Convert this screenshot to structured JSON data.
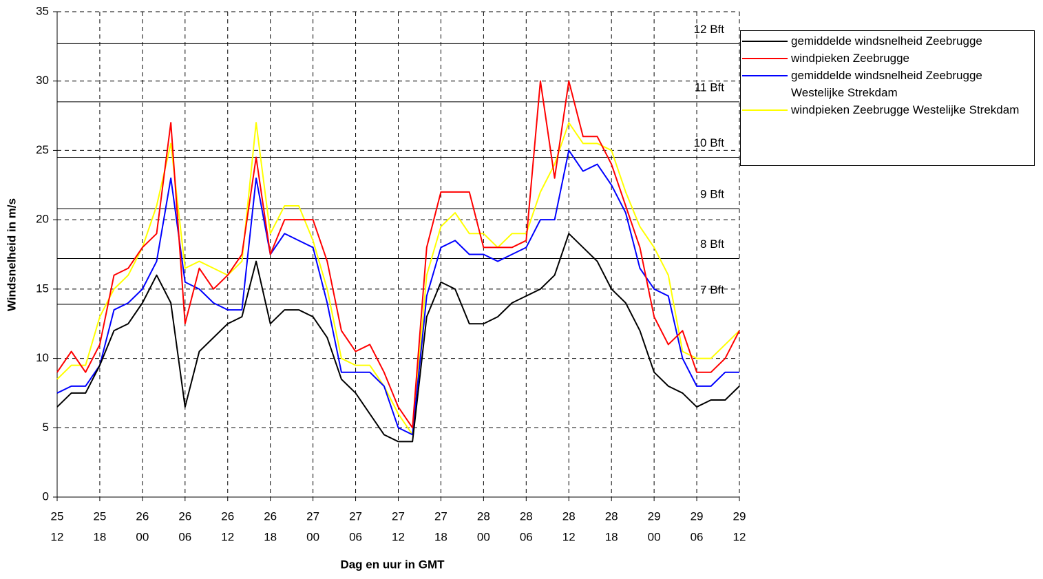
{
  "chart_data": {
    "type": "line",
    "y_label": "Windsnelheid in m/s",
    "x_label": "Dag en uur in GMT",
    "xlim": [
      0,
      96
    ],
    "xticks": [
      {
        "value": 0,
        "label": [
          "25",
          "12"
        ]
      },
      {
        "value": 6,
        "label": [
          "25",
          "18"
        ]
      },
      {
        "value": 12,
        "label": [
          "26",
          "00"
        ]
      },
      {
        "value": 18,
        "label": [
          "26",
          "06"
        ]
      },
      {
        "value": 24,
        "label": [
          "26",
          "12"
        ]
      },
      {
        "value": 30,
        "label": [
          "26",
          "18"
        ]
      },
      {
        "value": 36,
        "label": [
          "27",
          "00"
        ]
      },
      {
        "value": 42,
        "label": [
          "27",
          "06"
        ]
      },
      {
        "value": 48,
        "label": [
          "27",
          "12"
        ]
      },
      {
        "value": 54,
        "label": [
          "27",
          "18"
        ]
      },
      {
        "value": 60,
        "label": [
          "28",
          "00"
        ]
      },
      {
        "value": 66,
        "label": [
          "28",
          "06"
        ]
      },
      {
        "value": 72,
        "label": [
          "28",
          "12"
        ]
      },
      {
        "value": 78,
        "label": [
          "28",
          "18"
        ]
      },
      {
        "value": 84,
        "label": [
          "29",
          "00"
        ]
      },
      {
        "value": 90,
        "label": [
          "29",
          "06"
        ]
      },
      {
        "value": 96,
        "label": [
          "29",
          "12"
        ]
      }
    ],
    "ylim": [
      0,
      35
    ],
    "yticks": [
      0,
      5,
      10,
      15,
      20,
      25,
      30,
      35
    ],
    "grid": true,
    "legend": "right",
    "reference_lines": [
      {
        "value": 13.9,
        "label": "7 Bft"
      },
      {
        "value": 17.2,
        "label": "8 Bft"
      },
      {
        "value": 20.8,
        "label": "9 Bft"
      },
      {
        "value": 24.5,
        "label": "10 Bft"
      },
      {
        "value": 28.5,
        "label": "11 Bft"
      },
      {
        "value": 32.7,
        "label": "12 Bft"
      }
    ],
    "x": [
      0,
      2,
      4,
      6,
      8,
      10,
      12,
      14,
      16,
      18,
      20,
      22,
      24,
      26,
      28,
      30,
      32,
      34,
      36,
      38,
      40,
      42,
      44,
      46,
      48,
      50,
      52,
      54,
      56,
      58,
      60,
      62,
      64,
      66,
      68,
      70,
      72,
      74,
      76,
      78,
      80,
      82,
      84,
      86,
      88,
      90,
      92,
      94,
      96
    ],
    "series": [
      {
        "name": "gemiddelde windsnelheid Zeebrugge",
        "color": "#000000",
        "values": [
          6.5,
          7.5,
          7.5,
          9.5,
          12,
          12.5,
          14,
          16,
          14,
          6.5,
          10.5,
          11.5,
          12.5,
          13,
          17,
          12.5,
          13.5,
          13.5,
          13,
          11.5,
          8.5,
          7.5,
          6,
          4.5,
          4,
          4,
          13,
          15.5,
          15,
          12.5,
          12.5,
          13,
          14,
          14.5,
          15,
          16,
          19,
          18,
          17,
          15,
          14,
          12,
          9,
          8,
          7.5,
          6.5,
          7,
          7,
          8
        ]
      },
      {
        "name": "windpieken Zeebrugge",
        "color": "#ff0000",
        "values": [
          9,
          10.5,
          9,
          11,
          16,
          16.5,
          18,
          19,
          27,
          12.5,
          16.5,
          15,
          16,
          17.5,
          24.5,
          17.5,
          20,
          20,
          20,
          17,
          12,
          10.5,
          11,
          9,
          6.5,
          5,
          18,
          22,
          22,
          22,
          18,
          18,
          18,
          18.5,
          30,
          23,
          30,
          26,
          26,
          24,
          21,
          18,
          13,
          11,
          12,
          9,
          9,
          10,
          12
        ]
      },
      {
        "name": "gemiddelde windsnelheid Zeebrugge Westelijke Strekdam",
        "color": "#0000ff",
        "values": [
          7.5,
          8,
          8,
          9.5,
          13.5,
          14,
          15,
          17,
          23,
          15.5,
          15,
          14,
          13.5,
          13.5,
          23,
          17.5,
          19,
          18.5,
          18,
          14,
          9,
          9,
          9,
          8,
          5,
          4.5,
          14.5,
          18,
          18.5,
          17.5,
          17.5,
          17,
          17.5,
          18,
          20,
          20,
          25,
          23.5,
          24,
          22.5,
          20.5,
          16.5,
          15,
          14.5,
          10,
          8,
          8,
          9,
          9
        ]
      },
      {
        "name": "windpieken Zeebrugge Westelijke Strekdam",
        "color": "#ffff00",
        "values": [
          8.5,
          9.5,
          9.5,
          13,
          15,
          16,
          18,
          21,
          25.5,
          16.5,
          17,
          16.5,
          16,
          17,
          27,
          19,
          21,
          21,
          18.5,
          15,
          10,
          9.5,
          9.5,
          8,
          6,
          4.5,
          16,
          19.5,
          20.5,
          19,
          19,
          18,
          19,
          19,
          22,
          24,
          27,
          25.5,
          25.5,
          25,
          22,
          19.5,
          18,
          16,
          10.5,
          10,
          10,
          11,
          12
        ]
      }
    ]
  }
}
